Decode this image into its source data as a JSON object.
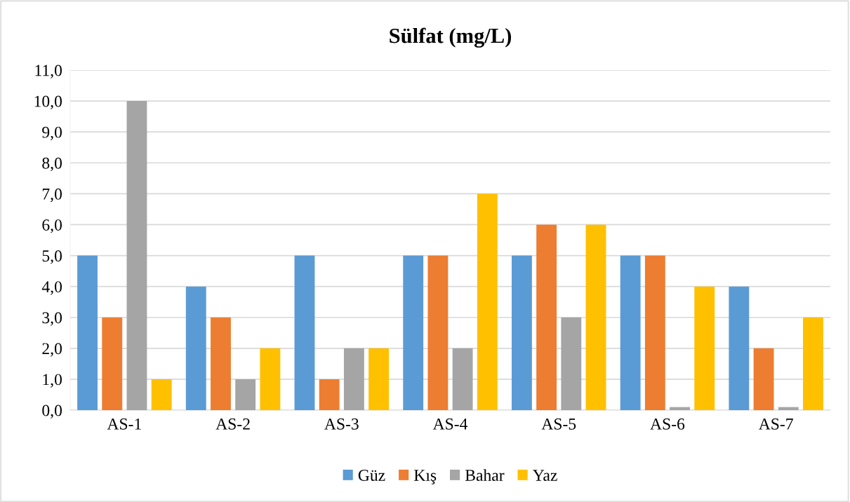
{
  "chart_data": {
    "type": "bar",
    "title": "Sülfat (mg/L)",
    "categories": [
      "AS-1",
      "AS-2",
      "AS-3",
      "AS-4",
      "AS-5",
      "AS-6",
      "AS-7"
    ],
    "series": [
      {
        "name": "Güz",
        "color": "#5b9bd5",
        "values": [
          5,
          4,
          5,
          5,
          5,
          5,
          4
        ]
      },
      {
        "name": "Kış",
        "color": "#ed7d31",
        "values": [
          3,
          3,
          1,
          5,
          6,
          5,
          2
        ]
      },
      {
        "name": "Bahar",
        "color": "#a5a5a5",
        "values": [
          10,
          1,
          2,
          2,
          3,
          0.1,
          0.1
        ]
      },
      {
        "name": "Yaz",
        "color": "#ffc000",
        "values": [
          1,
          2,
          2,
          7,
          6,
          4,
          3
        ]
      }
    ],
    "ylim": [
      0,
      11
    ],
    "yticks": [
      {
        "value": 0,
        "label": "0,0"
      },
      {
        "value": 1,
        "label": "1,0"
      },
      {
        "value": 2,
        "label": "2,0"
      },
      {
        "value": 3,
        "label": "3,0"
      },
      {
        "value": 4,
        "label": "4,0"
      },
      {
        "value": 5,
        "label": "5,0"
      },
      {
        "value": 6,
        "label": "6,0"
      },
      {
        "value": 7,
        "label": "7,0"
      },
      {
        "value": 8,
        "label": "8,0"
      },
      {
        "value": 9,
        "label": "9,0"
      },
      {
        "value": 10,
        "label": "10,0"
      },
      {
        "value": 11,
        "label": "11,0"
      }
    ],
    "grid": "y",
    "legend": "bottom"
  }
}
